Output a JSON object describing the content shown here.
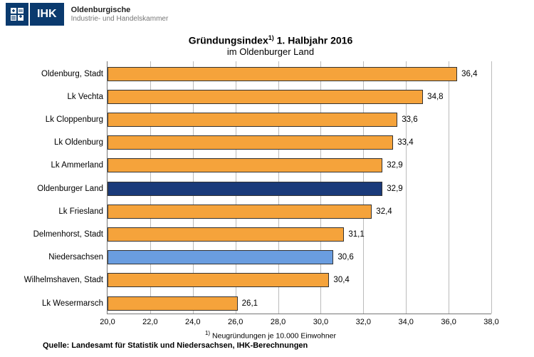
{
  "header": {
    "ihk_label": "IHK",
    "org_line1": "Oldenburgische",
    "org_line2": "Industrie- und Handelskammer"
  },
  "chart": {
    "type": "horizontal_bar",
    "title_prefix": "Gründungsindex",
    "title_sup": "1)",
    "title_suffix": " 1. Halbjahr 2016",
    "subtitle": "im Oldenburger Land",
    "xlim": [
      20.0,
      38.0
    ],
    "xtick_step": 2.0,
    "xticks": [
      "20,0",
      "22,0",
      "24,0",
      "26,0",
      "28,0",
      "30,0",
      "32,0",
      "34,0",
      "36,0",
      "38,0"
    ],
    "background_color": "#ffffff",
    "grid_color": "#bbbbbb",
    "axis_color": "#777777",
    "label_fontsize": 11.5,
    "bar_border_color": "#333333",
    "series": [
      {
        "label": "Oldenburg, Stadt",
        "value": 36.4,
        "value_label": "36,4",
        "color": "#f5a33b"
      },
      {
        "label": "Lk Vechta",
        "value": 34.8,
        "value_label": "34,8",
        "color": "#f5a33b"
      },
      {
        "label": "Lk Cloppenburg",
        "value": 33.6,
        "value_label": "33,6",
        "color": "#f5a33b"
      },
      {
        "label": "Lk Oldenburg",
        "value": 33.4,
        "value_label": "33,4",
        "color": "#f5a33b"
      },
      {
        "label": "Lk Ammerland",
        "value": 32.9,
        "value_label": "32,9",
        "color": "#f5a33b"
      },
      {
        "label": "Oldenburger Land",
        "value": 32.9,
        "value_label": "32,9",
        "color": "#1a3a7a"
      },
      {
        "label": "Lk Friesland",
        "value": 32.4,
        "value_label": "32,4",
        "color": "#f5a33b"
      },
      {
        "label": "Delmenhorst, Stadt",
        "value": 31.1,
        "value_label": "31,1",
        "color": "#f5a33b"
      },
      {
        "label": "Niedersachsen",
        "value": 30.6,
        "value_label": "30,6",
        "color": "#6a9de0"
      },
      {
        "label": "Wilhelmshaven, Stadt",
        "value": 30.4,
        "value_label": "30,4",
        "color": "#f5a33b"
      },
      {
        "label": "Lk Wesermarsch",
        "value": 26.1,
        "value_label": "26,1",
        "color": "#f5a33b"
      }
    ],
    "footnote_sup": "1)",
    "footnote_text": " Neugründungen je 10.000 Einwohner",
    "source": "Quelle: Landesamt für Statistik und  Niedersachsen, IHK-Berechnungen"
  }
}
